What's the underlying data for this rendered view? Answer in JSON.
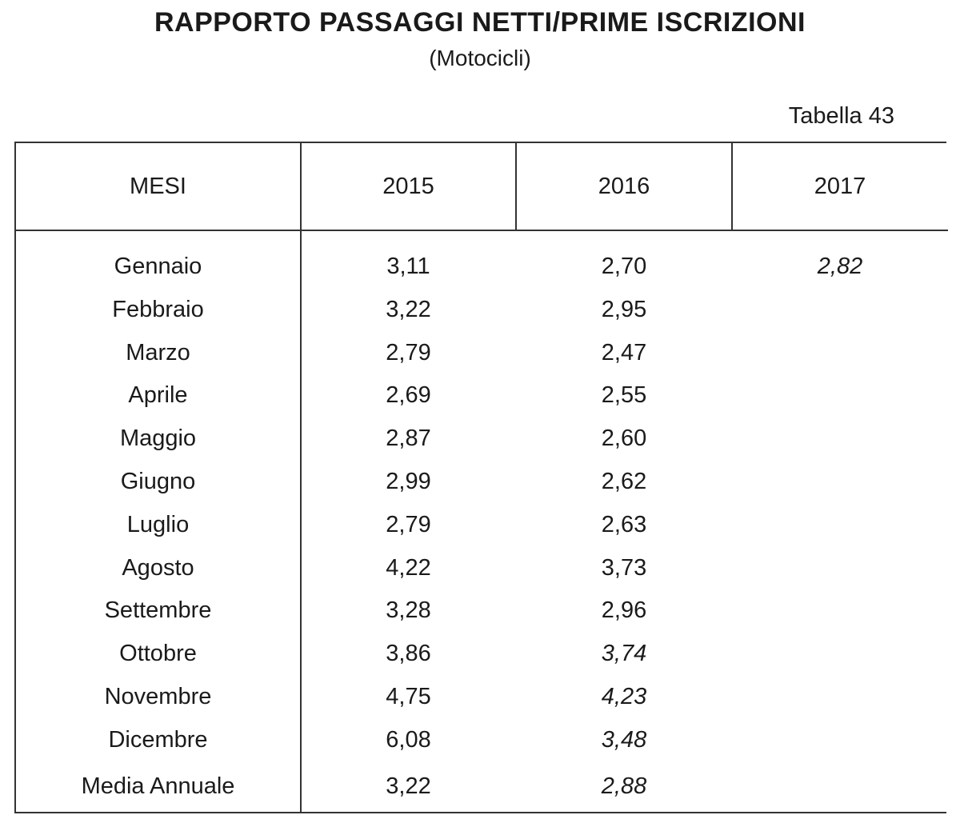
{
  "title": "RAPPORTO PASSAGGI NETTI/PRIME ISCRIZIONI",
  "subtitle": "(Motocicli)",
  "table_number": "Tabella 43",
  "table": {
    "headers": [
      "MESI",
      "2015",
      "2016",
      "2017"
    ],
    "rows": [
      {
        "month": "Gennaio",
        "y2015": "3,11",
        "y2016": "2,70",
        "y2017": "2,82"
      },
      {
        "month": "Febbraio",
        "y2015": "3,22",
        "y2016": "2,95",
        "y2017": ""
      },
      {
        "month": "Marzo",
        "y2015": "2,79",
        "y2016": "2,47",
        "y2017": ""
      },
      {
        "month": "Aprile",
        "y2015": "2,69",
        "y2016": "2,55",
        "y2017": ""
      },
      {
        "month": "Maggio",
        "y2015": "2,87",
        "y2016": "2,60",
        "y2017": ""
      },
      {
        "month": "Giugno",
        "y2015": "2,99",
        "y2016": "2,62",
        "y2017": ""
      },
      {
        "month": "Luglio",
        "y2015": "2,79",
        "y2016": "2,63",
        "y2017": ""
      },
      {
        "month": "Agosto",
        "y2015": "4,22",
        "y2016": "3,73",
        "y2017": ""
      },
      {
        "month": "Settembre",
        "y2015": "3,28",
        "y2016": "2,96",
        "y2017": ""
      },
      {
        "month": "Ottobre",
        "y2015": "3,86",
        "y2016": "3,74",
        "y2017": ""
      },
      {
        "month": "Novembre",
        "y2015": "4,75",
        "y2016": "4,23",
        "y2017": ""
      },
      {
        "month": "Dicembre",
        "y2015": "6,08",
        "y2016": "3,48",
        "y2017": ""
      }
    ],
    "annual_average": {
      "label": "Media Annuale",
      "y2015": "3,22",
      "y2016": "2,88",
      "y2017": ""
    }
  }
}
